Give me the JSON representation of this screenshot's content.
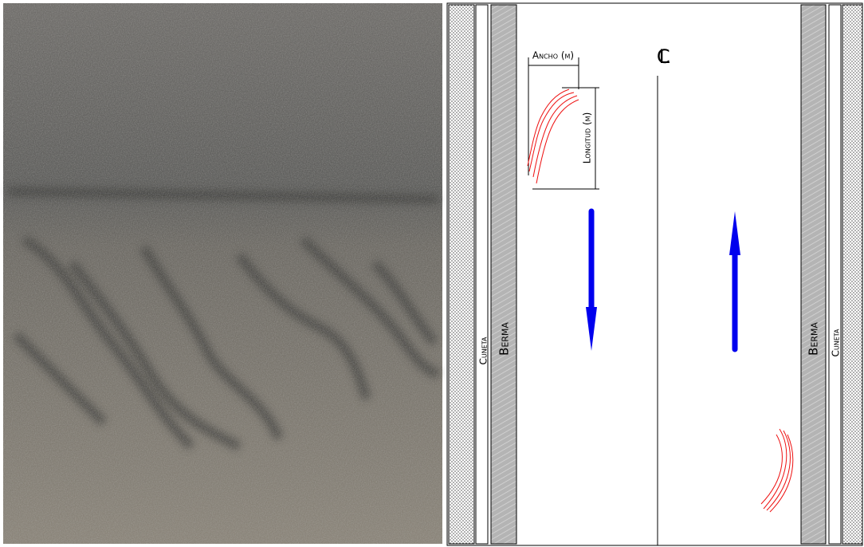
{
  "labels": {
    "ancho": "Ancho (m)",
    "longitud": "Longitud (m)",
    "centerline": "CL",
    "left_cuneta": "Cuneta",
    "left_berma": "Berma",
    "right_berma": "Berma",
    "right_cuneta": "Cuneta"
  }
}
